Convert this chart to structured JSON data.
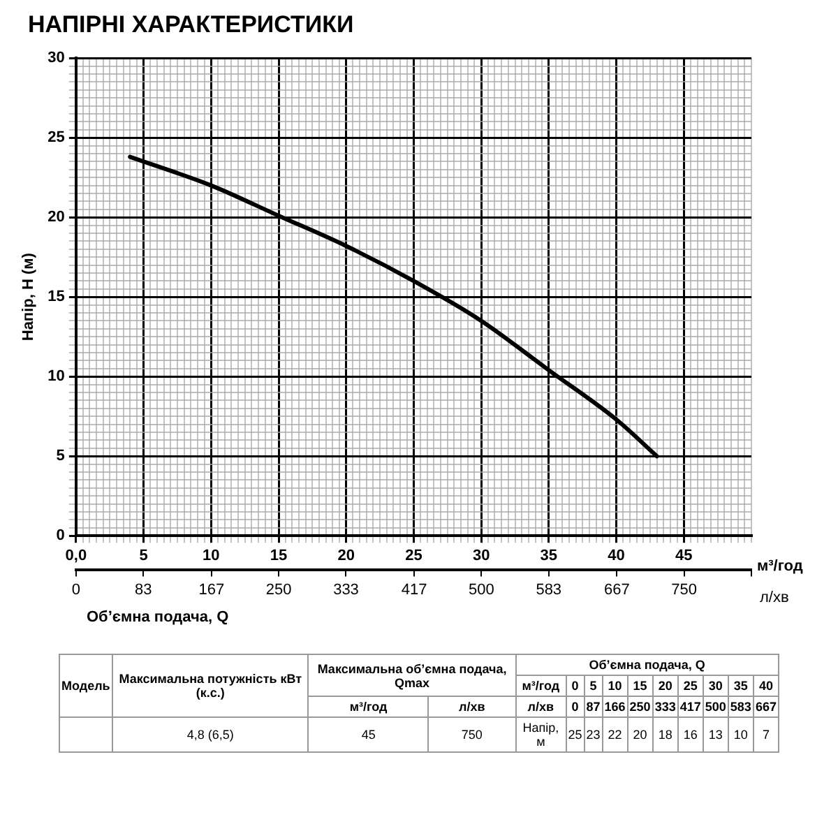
{
  "chart_data": {
    "type": "line",
    "title": "НАПІРНІ ХАРАКТЕРИСТИКИ",
    "xlabel": "м³/год",
    "x2label": "л/хв",
    "ylabel": "Напір, Н (м)",
    "x": [
      4,
      10,
      15,
      20,
      25,
      30,
      35,
      40,
      43
    ],
    "series": [
      {
        "color": "#000000",
        "values": [
          23.8,
          22.0,
          20.1,
          18.2,
          16.0,
          13.5,
          10.4,
          7.3,
          5.0
        ]
      }
    ],
    "xlim": [
      0,
      50
    ],
    "xticks": [
      {
        "value": 0,
        "label": "0,0"
      },
      {
        "value": 0.5,
        "label": null
      },
      {
        "value": 1,
        "label": null
      },
      {
        "value": 1.5,
        "label": null
      },
      {
        "value": 2,
        "label": null
      },
      {
        "value": 2.5,
        "label": null
      },
      {
        "value": 3,
        "label": null
      },
      {
        "value": 3.5,
        "label": null
      },
      {
        "value": 4,
        "label": null
      },
      {
        "value": 4.5,
        "label": null
      },
      5,
      {
        "value": 5.5,
        "label": null
      },
      {
        "value": 6,
        "label": null
      },
      {
        "value": 6.5,
        "label": null
      },
      {
        "value": 7,
        "label": null
      },
      {
        "value": 7.5,
        "label": null
      },
      {
        "value": 8,
        "label": null
      },
      {
        "value": 8.5,
        "label": null
      },
      {
        "value": 9,
        "label": null
      },
      {
        "value": 9.5,
        "label": null
      },
      10,
      {
        "value": 10.5,
        "label": null
      },
      {
        "value": 11,
        "label": null
      },
      {
        "value": 11.5,
        "label": null
      },
      {
        "value": 12,
        "label": null
      },
      {
        "value": 12.5,
        "label": null
      },
      {
        "value": 13,
        "label": null
      },
      {
        "value": 13.5,
        "label": null
      },
      {
        "value": 14,
        "label": null
      },
      {
        "value": 14.5,
        "label": null
      },
      15,
      {
        "value": 15.5,
        "label": null
      },
      {
        "value": 16,
        "label": null
      },
      {
        "value": 16.5,
        "label": null
      },
      {
        "value": 17,
        "label": null
      },
      {
        "value": 17.5,
        "label": null
      },
      {
        "value": 18,
        "label": null
      },
      {
        "value": 18.5,
        "label": null
      },
      {
        "value": 19,
        "label": null
      },
      {
        "value": 19.5,
        "label": null
      },
      20,
      {
        "value": 20.5,
        "label": null
      },
      {
        "value": 21,
        "label": null
      },
      {
        "value": 21.5,
        "label": null
      },
      {
        "value": 22,
        "label": null
      },
      {
        "value": 22.5,
        "label": null
      },
      {
        "value": 23,
        "label": null
      },
      {
        "value": 23.5,
        "label": null
      },
      {
        "value": 24,
        "label": null
      },
      {
        "value": 24.5,
        "label": null
      },
      25,
      {
        "value": 25.5,
        "label": null
      },
      {
        "value": 26,
        "label": null
      },
      {
        "value": 26.5,
        "label": null
      },
      {
        "value": 27,
        "label": null
      },
      {
        "value": 27.5,
        "label": null
      },
      {
        "value": 28,
        "label": null
      },
      {
        "value": 28.5,
        "label": null
      },
      {
        "value": 29,
        "label": null
      },
      {
        "value": 29.5,
        "label": null
      },
      30,
      {
        "value": 30.5,
        "label": null
      },
      {
        "value": 31,
        "label": null
      },
      {
        "value": 31.5,
        "label": null
      },
      {
        "value": 32,
        "label": null
      },
      {
        "value": 32.5,
        "label": null
      },
      {
        "value": 33,
        "label": null
      },
      {
        "value": 33.5,
        "label": null
      },
      {
        "value": 34,
        "label": null
      },
      {
        "value": 34.5,
        "label": null
      },
      35,
      {
        "value": 35.5,
        "label": null
      },
      {
        "value": 36,
        "label": null
      },
      {
        "value": 36.5,
        "label": null
      },
      {
        "value": 37,
        "label": null
      },
      {
        "value": 37.5,
        "label": null
      },
      {
        "value": 38,
        "label": null
      },
      {
        "value": 38.5,
        "label": null
      },
      {
        "value": 39,
        "label": null
      },
      {
        "value": 39.5,
        "label": null
      },
      40,
      {
        "value": 40.5,
        "label": null
      },
      {
        "value": 41,
        "label": null
      },
      {
        "value": 41.5,
        "label": null
      },
      {
        "value": 42,
        "label": null
      },
      {
        "value": 42.5,
        "label": null
      },
      {
        "value": 43,
        "label": null
      },
      {
        "value": 43.5,
        "label": null
      },
      {
        "value": 44,
        "label": null
      },
      {
        "value": 44.5,
        "label": null
      },
      45,
      {
        "value": 45.5,
        "label": null
      },
      {
        "value": 46,
        "label": null
      },
      {
        "value": 46.5,
        "label": null
      },
      {
        "value": 47,
        "label": null
      },
      {
        "value": 47.5,
        "label": null
      },
      {
        "value": 48,
        "label": null
      },
      {
        "value": 48.5,
        "label": null
      },
      {
        "value": 49,
        "label": null
      },
      {
        "value": 49.5,
        "label": null
      },
      {
        "value": 50,
        "label": null
      }
    ],
    "x2lim": [
      0,
      833
    ],
    "x2ticks": [
      0,
      83,
      167,
      250,
      333,
      417,
      500,
      583,
      667,
      750,
      {
        "value": 833,
        "label": null
      }
    ],
    "ylim": [
      0,
      30
    ],
    "yticks": [
      0,
      {
        "value": 0.5,
        "label": null
      },
      {
        "value": 1,
        "label": null
      },
      {
        "value": 1.5,
        "label": null
      },
      {
        "value": 2,
        "label": null
      },
      {
        "value": 2.5,
        "label": null
      },
      {
        "value": 3,
        "label": null
      },
      {
        "value": 3.5,
        "label": null
      },
      {
        "value": 4,
        "label": null
      },
      {
        "value": 4.5,
        "label": null
      },
      5,
      {
        "value": 5.5,
        "label": null
      },
      {
        "value": 6,
        "label": null
      },
      {
        "value": 6.5,
        "label": null
      },
      {
        "value": 7,
        "label": null
      },
      {
        "value": 7.5,
        "label": null
      },
      {
        "value": 8,
        "label": null
      },
      {
        "value": 8.5,
        "label": null
      },
      {
        "value": 9,
        "label": null
      },
      {
        "value": 9.5,
        "label": null
      },
      10,
      {
        "value": 10.5,
        "label": null
      },
      {
        "value": 11,
        "label": null
      },
      {
        "value": 11.5,
        "label": null
      },
      {
        "value": 12,
        "label": null
      },
      {
        "value": 12.5,
        "label": null
      },
      {
        "value": 13,
        "label": null
      },
      {
        "value": 13.5,
        "label": null
      },
      {
        "value": 14,
        "label": null
      },
      {
        "value": 14.5,
        "label": null
      },
      15,
      {
        "value": 15.5,
        "label": null
      },
      {
        "value": 16,
        "label": null
      },
      {
        "value": 16.5,
        "label": null
      },
      {
        "value": 17,
        "label": null
      },
      {
        "value": 17.5,
        "label": null
      },
      {
        "value": 18,
        "label": null
      },
      {
        "value": 18.5,
        "label": null
      },
      {
        "value": 19,
        "label": null
      },
      {
        "value": 19.5,
        "label": null
      },
      20,
      {
        "value": 20.5,
        "label": null
      },
      {
        "value": 21,
        "label": null
      },
      {
        "value": 21.5,
        "label": null
      },
      {
        "value": 22,
        "label": null
      },
      {
        "value": 22.5,
        "label": null
      },
      {
        "value": 23,
        "label": null
      },
      {
        "value": 23.5,
        "label": null
      },
      {
        "value": 24,
        "label": null
      },
      {
        "value": 24.5,
        "label": null
      },
      25,
      {
        "value": 25.5,
        "label": null
      },
      {
        "value": 26,
        "label": null
      },
      {
        "value": 26.5,
        "label": null
      },
      {
        "value": 27,
        "label": null
      },
      {
        "value": 27.5,
        "label": null
      },
      {
        "value": 28,
        "label": null
      },
      {
        "value": 28.5,
        "label": null
      },
      {
        "value": 29,
        "label": null
      },
      {
        "value": 29.5,
        "label": null
      },
      30
    ],
    "grid": true,
    "marker": "none",
    "line_style": "solid",
    "annotations": [
      "Об’ємна подача, Q",
      "Модель",
      "Максимальна потужність кВт (к.с.)",
      "Максимальна об’ємна подача, Qmax",
      "Об’ємна подача, Q",
      "м³/год",
      "л/хв",
      "м³/год",
      "0",
      "5",
      "10",
      "15",
      "20",
      "25",
      "30",
      "35",
      "40",
      "л/хв",
      "0",
      "87",
      "166",
      "250",
      "333",
      "417",
      "500",
      "583",
      "667",
      "4,8 (6,5)",
      "45",
      "750",
      "Напір, м",
      "25",
      "23",
      "22",
      "20",
      "18",
      "16",
      "13",
      "10",
      "7"
    ]
  }
}
